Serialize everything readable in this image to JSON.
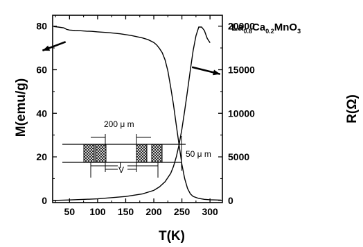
{
  "chart_data": {
    "type": "line",
    "title": {
      "prefix": "La",
      "sub1": "0.8",
      "mid": "Ca",
      "sub2": "0.2",
      "suffix": "MnO",
      "sub3": "3"
    },
    "xlabel": "T(K)",
    "ylabel_left": "M(emu/g)",
    "ylabel_right": "R(Ω)",
    "xlim": [
      20,
      322
    ],
    "ylim_left": [
      -1,
      85
    ],
    "ylim_right": [
      -250,
      21250
    ],
    "x_ticks": [
      50,
      100,
      150,
      200,
      250,
      300
    ],
    "x_minor_ticks": [
      25,
      75,
      125,
      175,
      225,
      275,
      325
    ],
    "y_left_ticks": [
      0,
      20,
      40,
      60,
      80
    ],
    "y_left_minor_ticks": [
      10,
      30,
      50,
      70
    ],
    "y_right_ticks": [
      0,
      5000,
      10000,
      15000,
      20000
    ],
    "y_right_minor_ticks": [
      2500,
      7500,
      12500,
      17500
    ],
    "grid": false,
    "series": [
      {
        "axis": "left",
        "x": [
          22,
          30,
          40,
          45,
          50,
          60,
          70,
          80,
          90,
          100,
          120,
          140,
          160,
          180,
          190,
          200,
          205,
          210,
          215,
          220,
          225,
          230,
          235,
          240,
          245,
          250,
          255,
          260,
          265,
          270,
          280,
          290,
          300,
          310,
          320
        ],
        "values": [
          79.8,
          79.6,
          79.2,
          78.5,
          78.2,
          78.0,
          77.9,
          77.7,
          77.6,
          77.4,
          77.0,
          76.5,
          75.7,
          74.6,
          73.8,
          72.5,
          71.4,
          69.8,
          67.8,
          64.5,
          59.5,
          52.0,
          44.0,
          34.5,
          25.5,
          16.5,
          10.0,
          5.5,
          3.0,
          1.8,
          0.9,
          0.5,
          0.3,
          0.2,
          0.1
        ]
      },
      {
        "axis": "right",
        "x": [
          20,
          50,
          100,
          150,
          180,
          200,
          210,
          220,
          230,
          235,
          240,
          245,
          250,
          255,
          260,
          265,
          270,
          275,
          280,
          285,
          290,
          295,
          300
        ],
        "values": [
          0,
          50,
          180,
          450,
          750,
          1150,
          1550,
          2150,
          3100,
          3900,
          5000,
          6400,
          8200,
          10300,
          12600,
          15000,
          17200,
          18900,
          19900,
          19900,
          19500,
          18600,
          18100
        ]
      }
    ],
    "annotations": {
      "arrow_left": {
        "from": [
          43,
          72.8
        ],
        "to": [
          2,
          68.8
        ]
      },
      "arrow_right": {
        "from": [
          268,
          15300
        ],
        "to": [
          318,
          14500
        ]
      }
    },
    "inset": {
      "width_label": "200 μ m",
      "height_label": "50 μ m",
      "voltage_label": "V",
      "current_label": "I"
    }
  }
}
